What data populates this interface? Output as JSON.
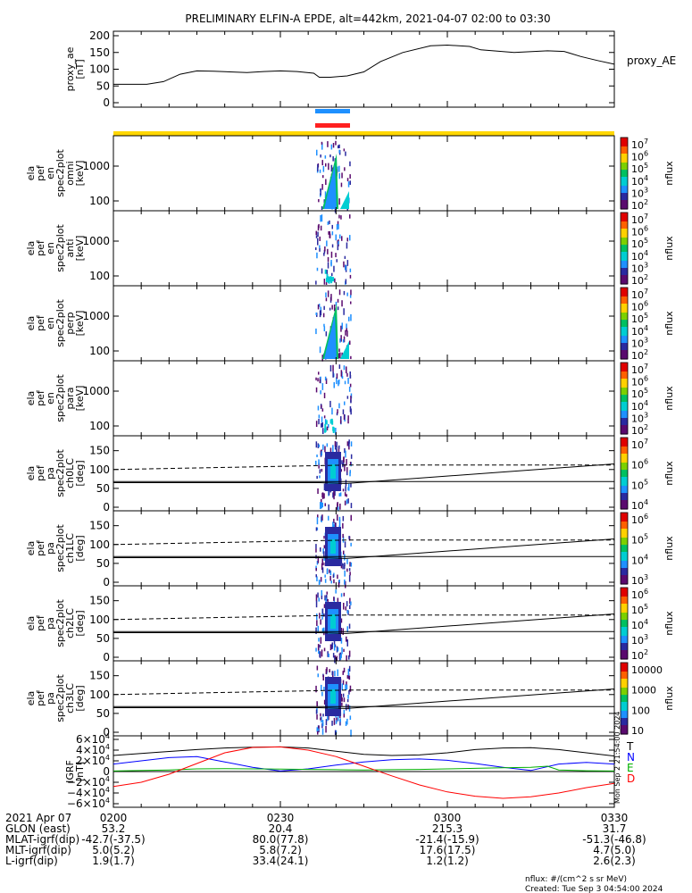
{
  "title": "PRELIMINARY ELFIN-A EPDE, alt=442km, 2021-04-07 02:00 to 03:30",
  "chart_data": [
    {
      "type": "line",
      "ylabel": [
        "proxy_ae",
        "[nT]"
      ],
      "yticks": [
        "200",
        "150",
        "100",
        "50",
        "0"
      ],
      "ylim": [
        0,
        200
      ],
      "series": [
        {
          "name": "proxy_AE",
          "x": [
            0,
            6,
            9,
            12,
            15,
            18,
            24,
            27,
            30,
            33,
            36,
            37,
            39,
            42,
            45,
            48,
            52,
            57,
            60,
            64,
            66,
            72,
            78,
            81,
            84,
            87,
            90
          ],
          "y": [
            55,
            55,
            63,
            85,
            95,
            94,
            90,
            93,
            95,
            93,
            88,
            76,
            76,
            80,
            92,
            123,
            150,
            170,
            172,
            168,
            158,
            150,
            155,
            153,
            138,
            126,
            115
          ]
        }
      ]
    },
    {
      "type": "heatmap",
      "ylabel": [
        "ela",
        "pef",
        "en",
        "spec2plot",
        "omni",
        "[keV]"
      ],
      "yticks": [
        "1000",
        "100"
      ],
      "zlabel": "nflux",
      "zticks": [
        "10",
        "10",
        "10",
        "10",
        "10",
        "10"
      ],
      "zexp": [
        "7",
        "6",
        "5",
        "4",
        "3",
        "2"
      ]
    },
    {
      "type": "heatmap",
      "ylabel": [
        "ela",
        "pef",
        "en",
        "spec2plot",
        "anti",
        "[keV]"
      ],
      "yticks": [
        "1000",
        "100"
      ],
      "zlabel": "nflux",
      "zticks": [
        "10",
        "10",
        "10",
        "10",
        "10",
        "10"
      ],
      "zexp": [
        "7",
        "6",
        "5",
        "4",
        "3",
        "2"
      ]
    },
    {
      "type": "heatmap",
      "ylabel": [
        "ela",
        "pef",
        "en",
        "spec2plot",
        "perp",
        "[keV]"
      ],
      "yticks": [
        "1000",
        "100"
      ],
      "zlabel": "nflux",
      "zticks": [
        "10",
        "10",
        "10",
        "10",
        "10",
        "10"
      ],
      "zexp": [
        "7",
        "6",
        "5",
        "4",
        "3",
        "2"
      ]
    },
    {
      "type": "heatmap",
      "ylabel": [
        "ela",
        "pef",
        "en",
        "spec2plot",
        "para",
        "[keV]"
      ],
      "yticks": [
        "1000",
        "100"
      ],
      "zlabel": "nflux",
      "zticks": [
        "10",
        "10",
        "10",
        "10",
        "10",
        "10"
      ],
      "zexp": [
        "7",
        "6",
        "5",
        "4",
        "3",
        "2"
      ]
    },
    {
      "type": "heatmap",
      "ylabel": [
        "ela",
        "pef",
        "pa",
        "spec2plot",
        "ch0LC",
        "[deg]"
      ],
      "yticks": [
        "150",
        "100",
        "50",
        "0"
      ],
      "ylim": [
        0,
        180
      ],
      "zlabel": "nflux",
      "zticks": [
        "10",
        "10",
        "10",
        "10"
      ],
      "zexp": [
        "7",
        "6",
        "5",
        "4"
      ]
    },
    {
      "type": "heatmap",
      "ylabel": [
        "ela",
        "pef",
        "pa",
        "spec2plot",
        "ch1LC",
        "[deg]"
      ],
      "yticks": [
        "150",
        "100",
        "50",
        "0"
      ],
      "ylim": [
        0,
        180
      ],
      "zlabel": "nflux",
      "zticks": [
        "10",
        "10",
        "10",
        "10"
      ],
      "zexp": [
        "6",
        "5",
        "4",
        "3"
      ]
    },
    {
      "type": "heatmap",
      "ylabel": [
        "ela",
        "pef",
        "pa",
        "spec2plot",
        "ch2LC",
        "[deg]"
      ],
      "yticks": [
        "150",
        "100",
        "50",
        "0"
      ],
      "ylim": [
        0,
        180
      ],
      "zlabel": "nflux",
      "zticks": [
        "10",
        "10",
        "10",
        "10",
        "10"
      ],
      "zexp": [
        "6",
        "5",
        "4",
        "3",
        "2"
      ]
    },
    {
      "type": "heatmap",
      "ylabel": [
        "ela",
        "pef",
        "pa",
        "spec2plot",
        "ch3LC",
        "[deg]"
      ],
      "yticks": [
        "150",
        "100",
        "50",
        "0"
      ],
      "ylim": [
        0,
        180
      ],
      "zlabel": "nflux",
      "zticks": [
        "10000",
        "1000",
        "100",
        "10"
      ]
    },
    {
      "type": "line",
      "ylabel": [
        "IGRF",
        "[nT]"
      ],
      "yticks": [
        "6×10",
        "4×10",
        "2×10",
        "0",
        "−2×10",
        "−4×10",
        "−6×10"
      ],
      "ytick_exp": [
        "4",
        "4",
        "4",
        "",
        "4",
        "4",
        "4"
      ],
      "ylim": [
        -60000,
        60000
      ],
      "legend_labels": [
        "T",
        "N",
        "E",
        "D"
      ],
      "legend_colors": [
        "#000000",
        "#0000ff",
        "#00b000",
        "#ff0000"
      ],
      "series": [
        {
          "color": "#000000",
          "x": [
            0,
            8,
            15,
            20,
            25,
            30,
            35,
            40,
            45,
            50,
            55,
            60,
            65,
            70,
            75,
            80,
            85,
            90
          ],
          "y": [
            30000,
            36000,
            41000,
            44000,
            45500,
            46000,
            44000,
            38000,
            32000,
            30000,
            31000,
            35000,
            41000,
            44000,
            44500,
            41000,
            35000,
            29000
          ]
        },
        {
          "color": "#0000ff",
          "x": [
            0,
            10,
            15,
            20,
            25,
            30,
            35,
            40,
            45,
            50,
            55,
            60,
            65,
            70,
            75,
            80,
            85,
            90
          ],
          "y": [
            14000,
            26000,
            28000,
            18000,
            8000,
            1000,
            5000,
            12000,
            18000,
            22000,
            23500,
            21000,
            15000,
            8000,
            2000,
            14000,
            17000,
            14000
          ]
        },
        {
          "color": "#00b000",
          "x": [
            0,
            10,
            15,
            20,
            25,
            30,
            35,
            40,
            45,
            50,
            55,
            60,
            65,
            70,
            75,
            78,
            80,
            85,
            90
          ],
          "y": [
            1000,
            3000,
            5000,
            5500,
            5000,
            4500,
            4000,
            3500,
            3000,
            3500,
            4000,
            5000,
            6000,
            7000,
            8000,
            10000,
            3000,
            1500,
            1000
          ]
        },
        {
          "color": "#ff0000",
          "x": [
            0,
            5,
            10,
            15,
            20,
            25,
            30,
            35,
            40,
            45,
            50,
            55,
            60,
            65,
            70,
            75,
            80,
            85,
            90
          ],
          "y": [
            -28000,
            -20000,
            -5000,
            15000,
            35000,
            45000,
            46000,
            40000,
            28000,
            10000,
            -8000,
            -25000,
            -38000,
            -46000,
            -50000,
            -47000,
            -40000,
            -30000,
            -22000
          ]
        }
      ]
    }
  ],
  "orbit_bars": {
    "blue": "#1e90ff",
    "red": "#ff2020",
    "yellow": "#ffd700"
  },
  "xaxis": {
    "rows": [
      {
        "label": "2021 Apr 07",
        "values": [
          "0200",
          "0230",
          "0300",
          "0330"
        ]
      },
      {
        "label": "GLON (east)",
        "values": [
          "53.2",
          "20.4",
          "215.3",
          "31.7"
        ]
      },
      {
        "label": "MLAT-igrf(dip)",
        "values": [
          "-42.7(-37.5)",
          "80.0(77.8)",
          "-21.4(-15.9)",
          "-51.3(-46.8)"
        ]
      },
      {
        "label": "MLT-igrf(dip)",
        "values": [
          "5.0(5.2)",
          "5.8(7.2)",
          "17.6(17.5)",
          "4.7(5.0)"
        ]
      },
      {
        "label": "L-igrf(dip)",
        "values": [
          "1.9(1.7)",
          "33.4(24.1)",
          "1.2(1.2)",
          "2.6(2.3)"
        ]
      }
    ]
  },
  "footer": {
    "units": "nflux: #/(cm^2 s sr MeV)",
    "created": "Created: Tue Sep  3 04:54:00 2024",
    "stamp": "Mon Sep  2 21:54:00 2024"
  }
}
